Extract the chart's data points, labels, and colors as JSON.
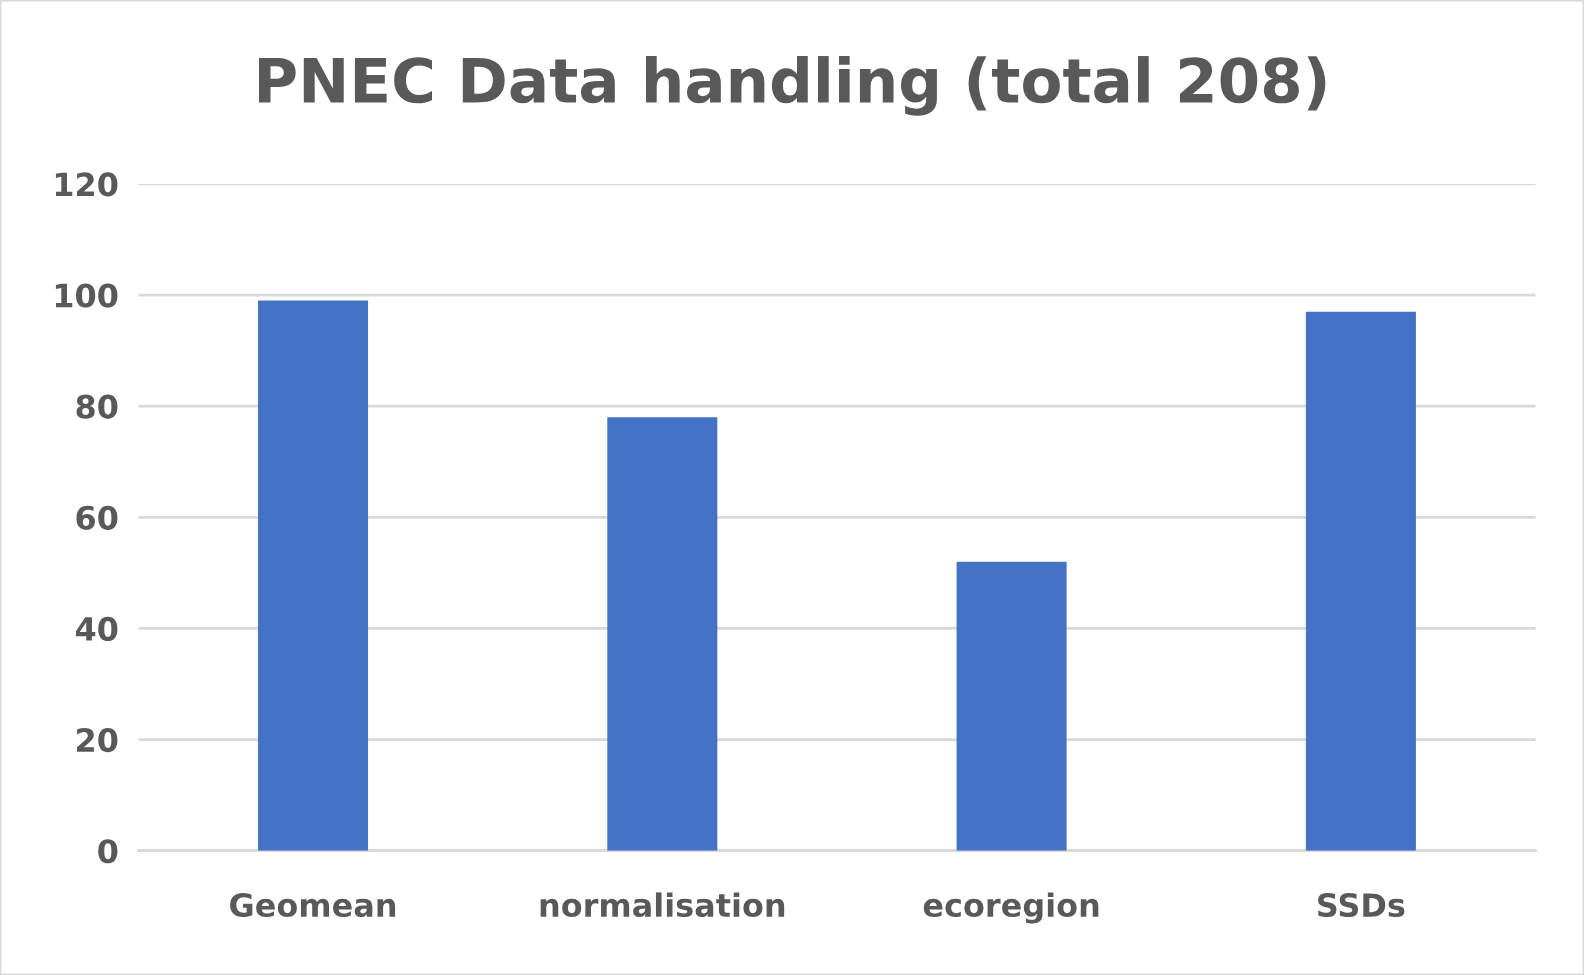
{
  "chart_data": {
    "type": "bar",
    "title": "PNEC Data handling (total 208)",
    "categories": [
      "Geomean",
      "normalisation",
      "ecoregion",
      "SSDs"
    ],
    "values": [
      99,
      78,
      52,
      97
    ],
    "color": "#4472c4",
    "ylim": [
      0,
      120
    ],
    "yticks": [
      0,
      20,
      40,
      60,
      80,
      100,
      120
    ],
    "grid": "y"
  }
}
